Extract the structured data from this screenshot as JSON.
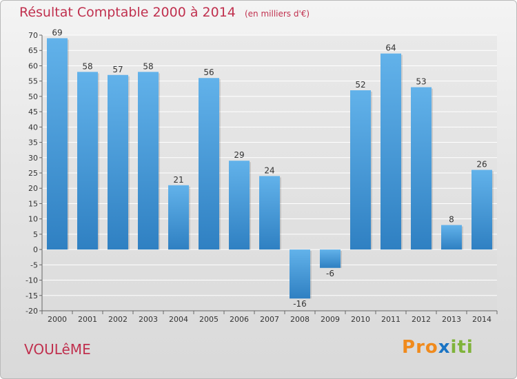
{
  "header": {
    "title": "Résultat Comptable 2000 à 2014",
    "subtitle": "(en milliers d'€)"
  },
  "footer": {
    "commune": "VOULêME",
    "logo_letters": [
      "P",
      "r",
      "o",
      "x",
      "i",
      "t",
      "i"
    ]
  },
  "colors": {
    "title": "#c0304e",
    "bar_top": "#62b2ea",
    "bar_bottom": "#2f80c2",
    "gridline": "#ffffff",
    "axis": "#666666",
    "logo": [
      "#f08a1c",
      "#f08a1c",
      "#f08a1c",
      "#1a74c4",
      "#7fb33a",
      "#7fb33a",
      "#7fb33a"
    ]
  },
  "chart_data": {
    "type": "bar",
    "title": "Résultat Comptable 2000 à 2014",
    "subtitle": "(en milliers d'€)",
    "xlabel": "",
    "ylabel": "",
    "categories": [
      "2000",
      "2001",
      "2002",
      "2003",
      "2004",
      "2005",
      "2006",
      "2007",
      "2008",
      "2009",
      "2010",
      "2011",
      "2012",
      "2013",
      "2014"
    ],
    "values": [
      69,
      58,
      57,
      58,
      21,
      56,
      29,
      24,
      -16,
      -6,
      52,
      64,
      53,
      8,
      26
    ],
    "ylim": [
      -20,
      70
    ],
    "yticks": [
      -20,
      -15,
      -10,
      -5,
      0,
      5,
      10,
      15,
      20,
      25,
      30,
      35,
      40,
      45,
      50,
      55,
      60,
      65,
      70
    ],
    "grid": true,
    "legend": "none",
    "data_labels": true
  }
}
